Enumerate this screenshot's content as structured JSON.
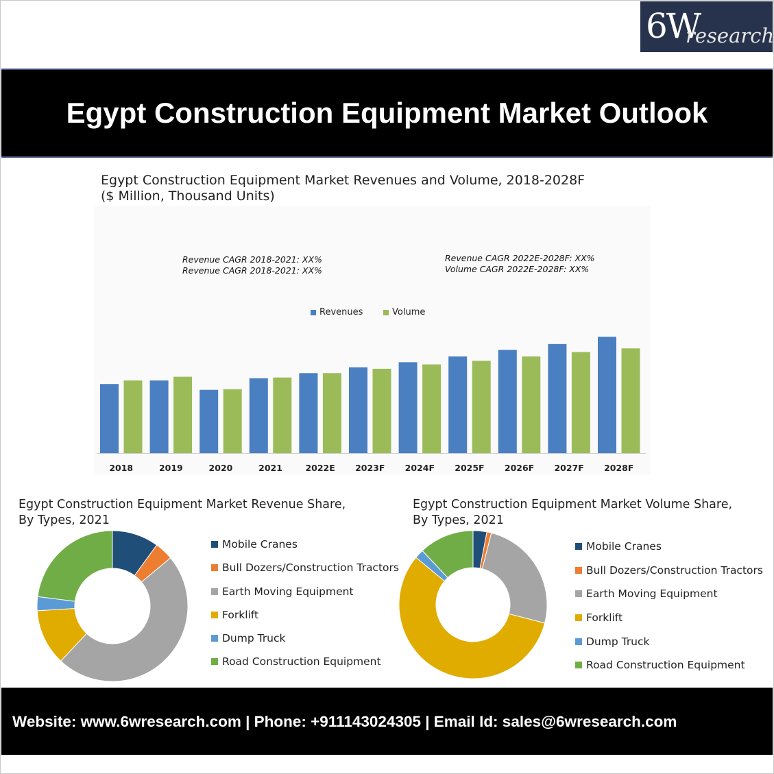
{
  "brand": {
    "logo_big": "6W",
    "logo_small": "research"
  },
  "banner": {
    "title": "Egypt Construction Equipment Market Outlook"
  },
  "main_chart": {
    "title_line1": "Egypt Construction Equipment Market Revenues and Volume, 2018-2028F",
    "title_line2": "($ Million, Thousand Units)",
    "notes_left": [
      "Revenue CAGR 2018-2021: XX%",
      "Revenue CAGR 2018-2021: XX%"
    ],
    "notes_right": [
      "Revenue CAGR 2022E-2028F: XX%",
      "Volume CAGR 2022E-2028F: XX%"
    ]
  },
  "revenue_pie": {
    "title_line1": "Egypt Construction Equipment Market Revenue Share,",
    "title_line2": "By Types, 2021"
  },
  "volume_pie": {
    "title_line1": "Egypt Construction Equipment Market Volume Share,",
    "title_line2": "By Types, 2021"
  },
  "footer": {
    "text": "Website: www.6wresearch.com | Phone: +911143024305 | Email Id: sales@6wresearch.com"
  },
  "colors": {
    "revenues": "#4a7fc1",
    "volume": "#9bbb59",
    "mobile_cranes": "#1f4e79",
    "bull_dozers": "#ed7d31",
    "earth_moving": "#a5a5a5",
    "forklift": "#e0ac00",
    "dump_truck": "#5b9bd5",
    "road_construction": "#70ad47"
  },
  "chart_data": [
    {
      "type": "bar",
      "categories": [
        "2018",
        "2019",
        "2020",
        "2021",
        "2022E",
        "2023F",
        "2024F",
        "2025F",
        "2026F",
        "2027F",
        "2028F"
      ],
      "series": [
        {
          "name": "Revenues",
          "values": [
            95,
            100,
            87,
            103,
            110,
            118,
            125,
            133,
            142,
            150,
            160
          ]
        },
        {
          "name": "Volume",
          "values": [
            100,
            105,
            88,
            104,
            110,
            116,
            122,
            127,
            133,
            139,
            144
          ]
        }
      ],
      "ylim": [
        0,
        180
      ],
      "grid": false,
      "legend": "top-center"
    },
    {
      "type": "pie",
      "categories": [
        "Mobile Cranes",
        "Bull Dozers/Construction Tractors",
        "Earth Moving Equipment",
        "Forklift",
        "Dump Truck",
        "Road Construction Equipment"
      ],
      "values": [
        10,
        4,
        48,
        12,
        3,
        23
      ],
      "legend": "right"
    },
    {
      "type": "pie",
      "categories": [
        "Mobile Cranes",
        "Bull Dozers/Construction Tractors",
        "Earth Moving Equipment",
        "Forklift",
        "Dump Truck",
        "Road Construction Equipment"
      ],
      "values": [
        3,
        1,
        25,
        57,
        2,
        12
      ],
      "legend": "right"
    }
  ]
}
